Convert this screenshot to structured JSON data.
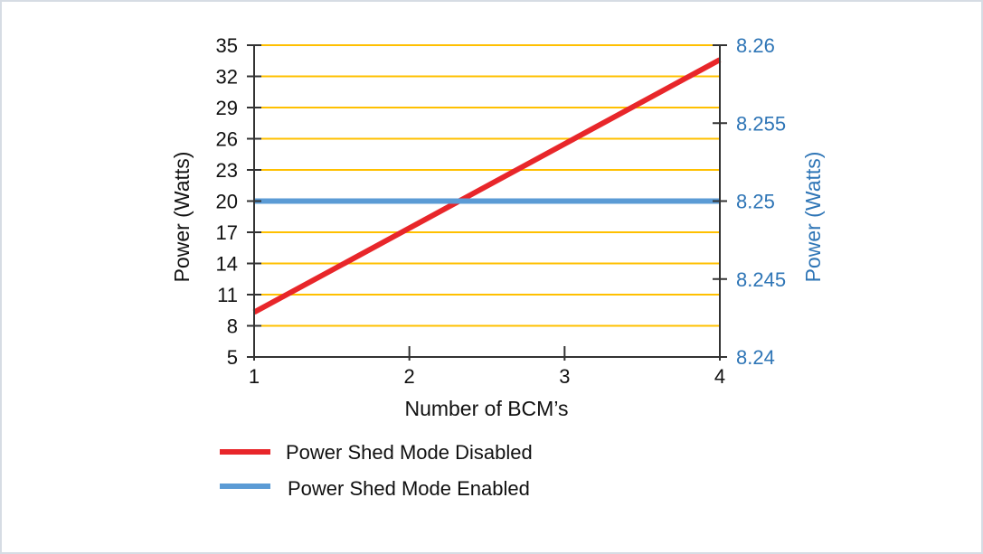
{
  "chart_data": {
    "type": "line",
    "xlabel": "Number of BCM’s",
    "ylabel_left": "Power (Watts)",
    "ylabel_right": "Power (Watts)",
    "x": [
      1,
      2,
      3,
      4
    ],
    "x_ticks": [
      "1",
      "2",
      "3",
      "4"
    ],
    "xlim": [
      1,
      4
    ],
    "y_left_ticks": [
      "5",
      "8",
      "11",
      "14",
      "17",
      "20",
      "23",
      "26",
      "29",
      "32",
      "35"
    ],
    "y_left_lim": [
      5,
      35
    ],
    "y_right_ticks": [
      "8.24",
      "8.245",
      "8.25",
      "8.255",
      "8.26"
    ],
    "y_right_lim": [
      8.24,
      8.26
    ],
    "grid": true,
    "legend_position": "bottom",
    "series": [
      {
        "name": "Power Shed Mode Disabled",
        "axis": "left",
        "color": "#e8262a",
        "values": [
          9.3,
          17.4,
          25.5,
          33.6
        ]
      },
      {
        "name": "Power Shed Mode Enabled",
        "axis": "right",
        "color": "#5b9bd5",
        "values": [
          8.25,
          8.25,
          8.25,
          8.25
        ]
      }
    ],
    "colors": {
      "gridline": "#ffc000",
      "right_axis_text": "#2e75b6",
      "axis": "#333333"
    }
  }
}
